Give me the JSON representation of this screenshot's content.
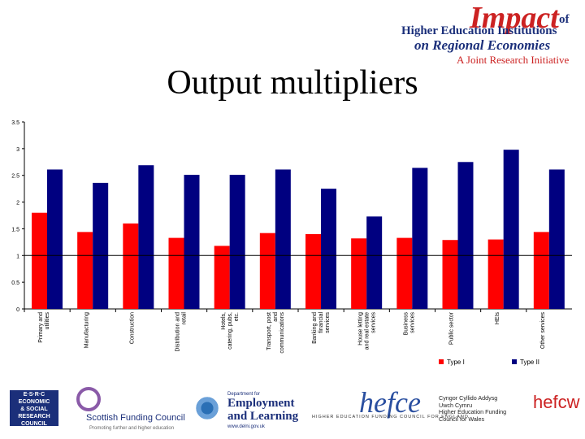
{
  "logo": {
    "impact": "Impact",
    "of": "of",
    "line1": "Higher Education Institutions",
    "line2": "on Regional Economies",
    "line3": "A Joint Research Initiative"
  },
  "title": "Output multipliers",
  "chart_data": {
    "type": "bar",
    "categories": [
      "Primary and utilities",
      "Manufacturing",
      "Construction",
      "Distribution and retail",
      "Hotels, catering, pubs, etc.",
      "Transport, post and communications",
      "Banking and financial services",
      "House letting and real estate services",
      "Business services",
      "Public sector",
      "HEIs",
      "Other services"
    ],
    "series": [
      {
        "name": "Type I",
        "color": "#ff0000",
        "values": [
          1.8,
          1.44,
          1.6,
          1.33,
          1.18,
          1.42,
          1.4,
          1.32,
          1.33,
          1.29,
          1.3,
          1.44
        ]
      },
      {
        "name": "Type II",
        "color": "#000080",
        "values": [
          2.61,
          2.36,
          2.69,
          2.51,
          2.51,
          2.61,
          2.25,
          1.73,
          2.64,
          2.75,
          2.98,
          2.61
        ]
      }
    ],
    "ylim": [
      0,
      3.5
    ],
    "yticks": [
      "0",
      "0.5",
      "1",
      "1.5",
      "2",
      "2.5",
      "3",
      "3.5"
    ],
    "reference_line": 1,
    "legend": "bottom-right",
    "grid": false
  },
  "footer": {
    "esrc_lines": [
      "E·S·R·C",
      "ECONOMIC",
      "& SOCIAL",
      "RESEARCH",
      "COUNCIL"
    ],
    "sfc_name": "Scottish Funding Council",
    "sfc_tag": "Promoting further and higher education",
    "del_dept": "Department for",
    "del_line1": "Employment",
    "del_line2": "and Learning",
    "del_url": "www.delni.gov.uk",
    "hefce_word": "hefce",
    "hefce_sub": "HIGHER EDUCATION FUNDING COUNCIL FOR ENGLAND",
    "wales_lines": [
      "Cyngor Cyllido Addysg",
      "Uwch Cymru",
      "Higher Education Funding",
      "Council for Wales"
    ],
    "hefcw": "hefcw"
  }
}
